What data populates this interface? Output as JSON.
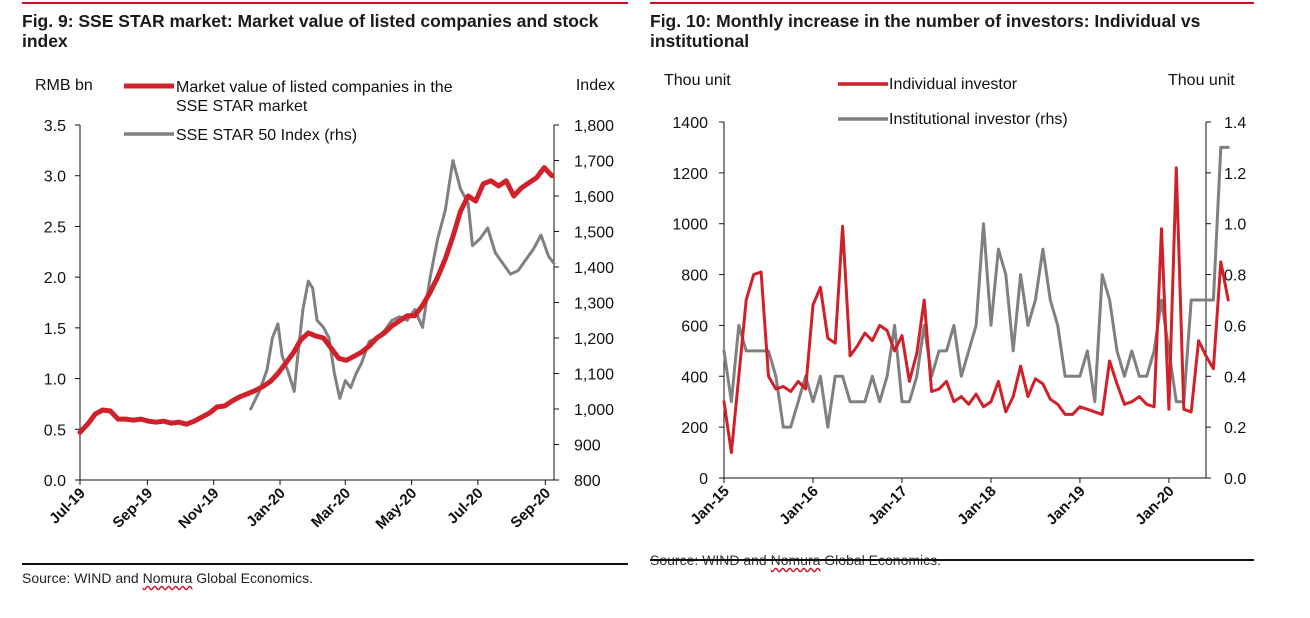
{
  "left": {
    "title": "Fig. 9: SSE STAR market: Market value of listed companies and stock index",
    "source_prefix": "Source: WIND and ",
    "source_mid": "Nomura",
    "source_suffix": " Global Economics.",
    "chart_data": {
      "type": "line",
      "title": "Fig. 9: SSE STAR market: Market value of listed companies and stock index",
      "ylabel_left": "RMB bn",
      "ylabel_right": "Index",
      "ylim_left": [
        0,
        3.5
      ],
      "ylim_right": [
        800,
        1800
      ],
      "yticks_left": [
        "0.0",
        "0.5",
        "1.0",
        "1.5",
        "2.0",
        "2.5",
        "3.0",
        "3.5"
      ],
      "yticks_right": [
        "800",
        "900",
        "1,000",
        "1,100",
        "1,200",
        "1,300",
        "1,400",
        "1,500",
        "1,600",
        "1,700",
        "1,800"
      ],
      "xlim": [
        "2019-07-22",
        "2020-09-30"
      ],
      "xticks": [
        {
          "label": "Jul-19",
          "date": "2019-07-22"
        },
        {
          "label": "Sep-19",
          "date": "2019-09-22"
        },
        {
          "label": "Nov-19",
          "date": "2019-11-22"
        },
        {
          "label": "Jan-20",
          "date": "2020-01-22"
        },
        {
          "label": "Mar-20",
          "date": "2020-03-22"
        },
        {
          "label": "May-20",
          "date": "2020-05-22"
        },
        {
          "label": "Jul-20",
          "date": "2020-07-22"
        },
        {
          "label": "Sep-20",
          "date": "2020-09-22"
        }
      ],
      "legend": [
        "Market value of listed companies in the",
        "SSE STAR market",
        "SSE STAR 50 Index (rhs)"
      ],
      "series": [
        {
          "name": "Market value of listed companies in the SSE STAR market",
          "color": "#d0202a",
          "axis": "left",
          "points": [
            [
              "2019-07-22",
              0.47
            ],
            [
              "2019-07-29",
              0.55
            ],
            [
              "2019-08-05",
              0.65
            ],
            [
              "2019-08-12",
              0.69
            ],
            [
              "2019-08-19",
              0.68
            ],
            [
              "2019-08-26",
              0.6
            ],
            [
              "2019-09-02",
              0.6
            ],
            [
              "2019-09-09",
              0.59
            ],
            [
              "2019-09-16",
              0.6
            ],
            [
              "2019-09-23",
              0.58
            ],
            [
              "2019-09-30",
              0.57
            ],
            [
              "2019-10-07",
              0.58
            ],
            [
              "2019-10-14",
              0.56
            ],
            [
              "2019-10-21",
              0.57
            ],
            [
              "2019-10-28",
              0.55
            ],
            [
              "2019-11-04",
              0.58
            ],
            [
              "2019-11-11",
              0.62
            ],
            [
              "2019-11-18",
              0.66
            ],
            [
              "2019-11-25",
              0.72
            ],
            [
              "2019-12-02",
              0.73
            ],
            [
              "2019-12-09",
              0.78
            ],
            [
              "2019-12-16",
              0.82
            ],
            [
              "2019-12-23",
              0.85
            ],
            [
              "2019-12-30",
              0.88
            ],
            [
              "2020-01-06",
              0.92
            ],
            [
              "2020-01-13",
              0.97
            ],
            [
              "2020-01-20",
              1.05
            ],
            [
              "2020-01-27",
              1.15
            ],
            [
              "2020-02-03",
              1.25
            ],
            [
              "2020-02-10",
              1.38
            ],
            [
              "2020-02-17",
              1.45
            ],
            [
              "2020-02-24",
              1.42
            ],
            [
              "2020-03-02",
              1.4
            ],
            [
              "2020-03-09",
              1.3
            ],
            [
              "2020-03-16",
              1.2
            ],
            [
              "2020-03-23",
              1.18
            ],
            [
              "2020-03-30",
              1.22
            ],
            [
              "2020-04-06",
              1.26
            ],
            [
              "2020-04-13",
              1.32
            ],
            [
              "2020-04-20",
              1.4
            ],
            [
              "2020-04-27",
              1.45
            ],
            [
              "2020-05-04",
              1.52
            ],
            [
              "2020-05-11",
              1.57
            ],
            [
              "2020-05-18",
              1.62
            ],
            [
              "2020-05-25",
              1.62
            ],
            [
              "2020-06-01",
              1.72
            ],
            [
              "2020-06-08",
              1.85
            ],
            [
              "2020-06-15",
              2.0
            ],
            [
              "2020-06-22",
              2.18
            ],
            [
              "2020-06-29",
              2.4
            ],
            [
              "2020-07-06",
              2.65
            ],
            [
              "2020-07-13",
              2.8
            ],
            [
              "2020-07-20",
              2.75
            ],
            [
              "2020-07-27",
              2.92
            ],
            [
              "2020-08-03",
              2.95
            ],
            [
              "2020-08-10",
              2.9
            ],
            [
              "2020-08-17",
              2.95
            ],
            [
              "2020-08-24",
              2.8
            ],
            [
              "2020-08-31",
              2.88
            ],
            [
              "2020-09-07",
              2.93
            ],
            [
              "2020-09-14",
              2.98
            ],
            [
              "2020-09-21",
              3.08
            ],
            [
              "2020-09-28",
              3.0
            ]
          ]
        },
        {
          "name": "SSE STAR 50 Index (rhs)",
          "color": "#808080",
          "axis": "right",
          "points": [
            [
              "2019-12-26",
              1000
            ],
            [
              "2020-01-03",
              1050
            ],
            [
              "2020-01-10",
              1110
            ],
            [
              "2020-01-15",
              1200
            ],
            [
              "2020-01-20",
              1240
            ],
            [
              "2020-01-24",
              1150
            ],
            [
              "2020-01-30",
              1100
            ],
            [
              "2020-02-04",
              1050
            ],
            [
              "2020-02-07",
              1140
            ],
            [
              "2020-02-12",
              1280
            ],
            [
              "2020-02-17",
              1360
            ],
            [
              "2020-02-21",
              1340
            ],
            [
              "2020-02-25",
              1250
            ],
            [
              "2020-03-02",
              1230
            ],
            [
              "2020-03-07",
              1200
            ],
            [
              "2020-03-12",
              1100
            ],
            [
              "2020-03-17",
              1030
            ],
            [
              "2020-03-22",
              1080
            ],
            [
              "2020-03-27",
              1060
            ],
            [
              "2020-04-01",
              1100
            ],
            [
              "2020-04-06",
              1130
            ],
            [
              "2020-04-13",
              1190
            ],
            [
              "2020-04-20",
              1200
            ],
            [
              "2020-04-27",
              1220
            ],
            [
              "2020-05-04",
              1250
            ],
            [
              "2020-05-11",
              1260
            ],
            [
              "2020-05-18",
              1250
            ],
            [
              "2020-05-25",
              1280
            ],
            [
              "2020-06-01",
              1230
            ],
            [
              "2020-06-08",
              1370
            ],
            [
              "2020-06-15",
              1480
            ],
            [
              "2020-06-22",
              1560
            ],
            [
              "2020-06-29",
              1700
            ],
            [
              "2020-07-06",
              1620
            ],
            [
              "2020-07-13",
              1580
            ],
            [
              "2020-07-17",
              1460
            ],
            [
              "2020-07-24",
              1480
            ],
            [
              "2020-07-31",
              1510
            ],
            [
              "2020-08-07",
              1440
            ],
            [
              "2020-08-14",
              1410
            ],
            [
              "2020-08-21",
              1380
            ],
            [
              "2020-08-28",
              1390
            ],
            [
              "2020-09-04",
              1420
            ],
            [
              "2020-09-11",
              1450
            ],
            [
              "2020-09-18",
              1490
            ],
            [
              "2020-09-25",
              1430
            ],
            [
              "2020-09-30",
              1410
            ]
          ]
        }
      ]
    }
  },
  "right": {
    "title": "Fig. 10: Monthly increase in the number of investors: Individual vs institutional",
    "source_prefix": "Source: WIND and ",
    "source_mid": "Nomura",
    "source_suffix": " Global Economics.",
    "chart_data": {
      "type": "line",
      "title": "Fig. 10: Monthly increase in the number of investors: Individual vs institutional",
      "ylabel_left": "Thou unit",
      "ylabel_right": "Thou unit",
      "ylim_left": [
        0,
        1400
      ],
      "ylim_right": [
        0.0,
        1.4
      ],
      "yticks_left": [
        "0",
        "200",
        "400",
        "600",
        "800",
        "1000",
        "1200",
        "1400"
      ],
      "yticks_right": [
        "0.0",
        "0.2",
        "0.4",
        "0.6",
        "0.8",
        "1.0",
        "1.2",
        "1.4"
      ],
      "xlim": [
        "2015-01",
        "2020-06"
      ],
      "xticks": [
        {
          "label": "Jan-15",
          "date": "2015-01"
        },
        {
          "label": "Jan-16",
          "date": "2016-01"
        },
        {
          "label": "Jan-17",
          "date": "2017-01"
        },
        {
          "label": "Jan-18",
          "date": "2018-01"
        },
        {
          "label": "Jan-19",
          "date": "2019-01"
        },
        {
          "label": "Jan-20",
          "date": "2020-01"
        }
      ],
      "legend": [
        "Individual investor",
        "Institutional investor (rhs)"
      ],
      "series": [
        {
          "name": "Individual investor",
          "color": "#d0202a",
          "axis": "left",
          "values": [
            300,
            100,
            400,
            700,
            800,
            810,
            400,
            350,
            360,
            340,
            380,
            350,
            680,
            750,
            550,
            530,
            990,
            480,
            520,
            570,
            540,
            600,
            580,
            500,
            560,
            380,
            490,
            700,
            340,
            350,
            380,
            300,
            320,
            290,
            330,
            280,
            300,
            380,
            260,
            320,
            440,
            320,
            390,
            370,
            310,
            290,
            250,
            250,
            280,
            270,
            260,
            250,
            460,
            370,
            290,
            300,
            320,
            290,
            280,
            980,
            270,
            1220,
            270,
            260,
            540,
            480,
            430,
            850,
            700
          ]
        },
        {
          "name": "Institutional investor (rhs)",
          "color": "#808080",
          "axis": "right",
          "values": [
            0.5,
            0.3,
            0.6,
            0.5,
            0.5,
            0.5,
            0.5,
            0.4,
            0.2,
            0.2,
            0.3,
            0.4,
            0.3,
            0.4,
            0.2,
            0.4,
            0.4,
            0.3,
            0.3,
            0.3,
            0.4,
            0.3,
            0.4,
            0.6,
            0.3,
            0.3,
            0.4,
            0.6,
            0.4,
            0.5,
            0.5,
            0.6,
            0.4,
            0.5,
            0.6,
            1.0,
            0.6,
            0.9,
            0.8,
            0.5,
            0.8,
            0.6,
            0.7,
            0.9,
            0.7,
            0.6,
            0.4,
            0.4,
            0.4,
            0.5,
            0.3,
            0.8,
            0.7,
            0.5,
            0.4,
            0.5,
            0.4,
            0.4,
            0.5,
            0.7,
            0.5,
            0.3,
            0.3,
            0.7,
            0.7,
            0.7,
            0.7,
            1.3,
            1.3
          ]
        }
      ]
    }
  }
}
